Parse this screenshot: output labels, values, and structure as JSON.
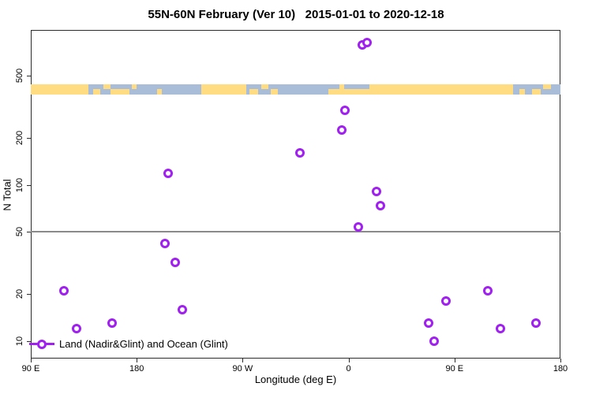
{
  "figure": {
    "background": "#ffffff"
  },
  "chart_data": {
    "type": "scatter",
    "title": "55N-60N February (Ver 10)   2015-01-01 to 2020-12-18",
    "xlabel": "Longitude (deg E)",
    "ylabel": "N Total",
    "x_scale": "linear",
    "y_scale": "log",
    "xlim": [
      90,
      540
    ],
    "ylim": [
      7.75,
      980
    ],
    "grid": false,
    "x_ticks": [
      {
        "value": 90,
        "label": "90 E"
      },
      {
        "value": 180,
        "label": "180"
      },
      {
        "value": 270,
        "label": "90 W"
      },
      {
        "value": 360,
        "label": "0"
      },
      {
        "value": 450,
        "label": "90 E"
      },
      {
        "value": 540,
        "label": "180"
      }
    ],
    "y_ticks": [
      {
        "value": 10,
        "label": "10"
      },
      {
        "value": 20,
        "label": "20"
      },
      {
        "value": 50,
        "label": "50"
      },
      {
        "value": 100,
        "label": "100"
      },
      {
        "value": 200,
        "label": "200"
      },
      {
        "value": 500,
        "label": "500"
      }
    ],
    "reference_line": {
      "y": 50,
      "color": "#8a8a8a"
    },
    "series": [
      {
        "name": "Land (Nadir&Glint) and Ocean (Glint)",
        "marker": "open-circle",
        "color": "#a020f0",
        "points": [
          {
            "lon_deg_e": 372,
            "n": 790
          },
          {
            "lon_deg_e": 376,
            "n": 815
          },
          {
            "lon_deg_e": 357,
            "n": 300
          },
          {
            "lon_deg_e": 354,
            "n": 224
          },
          {
            "lon_deg_e": 319,
            "n": 160
          },
          {
            "lon_deg_e": 207,
            "n": 118
          },
          {
            "lon_deg_e": 384,
            "n": 91
          },
          {
            "lon_deg_e": 387,
            "n": 74
          },
          {
            "lon_deg_e": 368,
            "n": 54
          },
          {
            "lon_deg_e": 204,
            "n": 42
          },
          {
            "lon_deg_e": 213,
            "n": 32
          },
          {
            "lon_deg_e": 118,
            "n": 21
          },
          {
            "lon_deg_e": 219,
            "n": 16
          },
          {
            "lon_deg_e": 159,
            "n": 13
          },
          {
            "lon_deg_e": 129,
            "n": 12
          },
          {
            "lon_deg_e": 428,
            "n": 13
          },
          {
            "lon_deg_e": 433,
            "n": 10
          },
          {
            "lon_deg_e": 443,
            "n": 18
          },
          {
            "lon_deg_e": 478,
            "n": 21
          },
          {
            "lon_deg_e": 489,
            "n": 12
          },
          {
            "lon_deg_e": 519,
            "n": 13
          }
        ]
      }
    ],
    "map_strip": {
      "description": "land-ocean reference band for 55N-60N",
      "y_top_value": 440,
      "y_bottom_value": 380,
      "ocean_color": "#a9bdd8",
      "land_color": "#ffdc82",
      "land_segments": [
        {
          "from": 90,
          "to": 139,
          "part": "full"
        },
        {
          "from": 143,
          "to": 149,
          "part": "bottom"
        },
        {
          "from": 152,
          "to": 158,
          "part": "top"
        },
        {
          "from": 158,
          "to": 174,
          "part": "bottom"
        },
        {
          "from": 176,
          "to": 180,
          "part": "top"
        },
        {
          "from": 197,
          "to": 201,
          "part": "bottom"
        },
        {
          "from": 235,
          "to": 273,
          "part": "full"
        },
        {
          "from": 276,
          "to": 283,
          "part": "bottom"
        },
        {
          "from": 286,
          "to": 292,
          "part": "top"
        },
        {
          "from": 294,
          "to": 300,
          "part": "bottom"
        },
        {
          "from": 343,
          "to": 378,
          "part": "bottom"
        },
        {
          "from": 352,
          "to": 356,
          "part": "top"
        },
        {
          "from": 378,
          "to": 500,
          "part": "full"
        },
        {
          "from": 505,
          "to": 510,
          "part": "bottom"
        },
        {
          "from": 516,
          "to": 523,
          "part": "bottom"
        },
        {
          "from": 525,
          "to": 532,
          "part": "top"
        }
      ]
    },
    "legend": {
      "label": "Land (Nadir&Glint) and Ocean (Glint)",
      "marker_color": "#a020f0",
      "position": "bottom-left-inside"
    }
  }
}
